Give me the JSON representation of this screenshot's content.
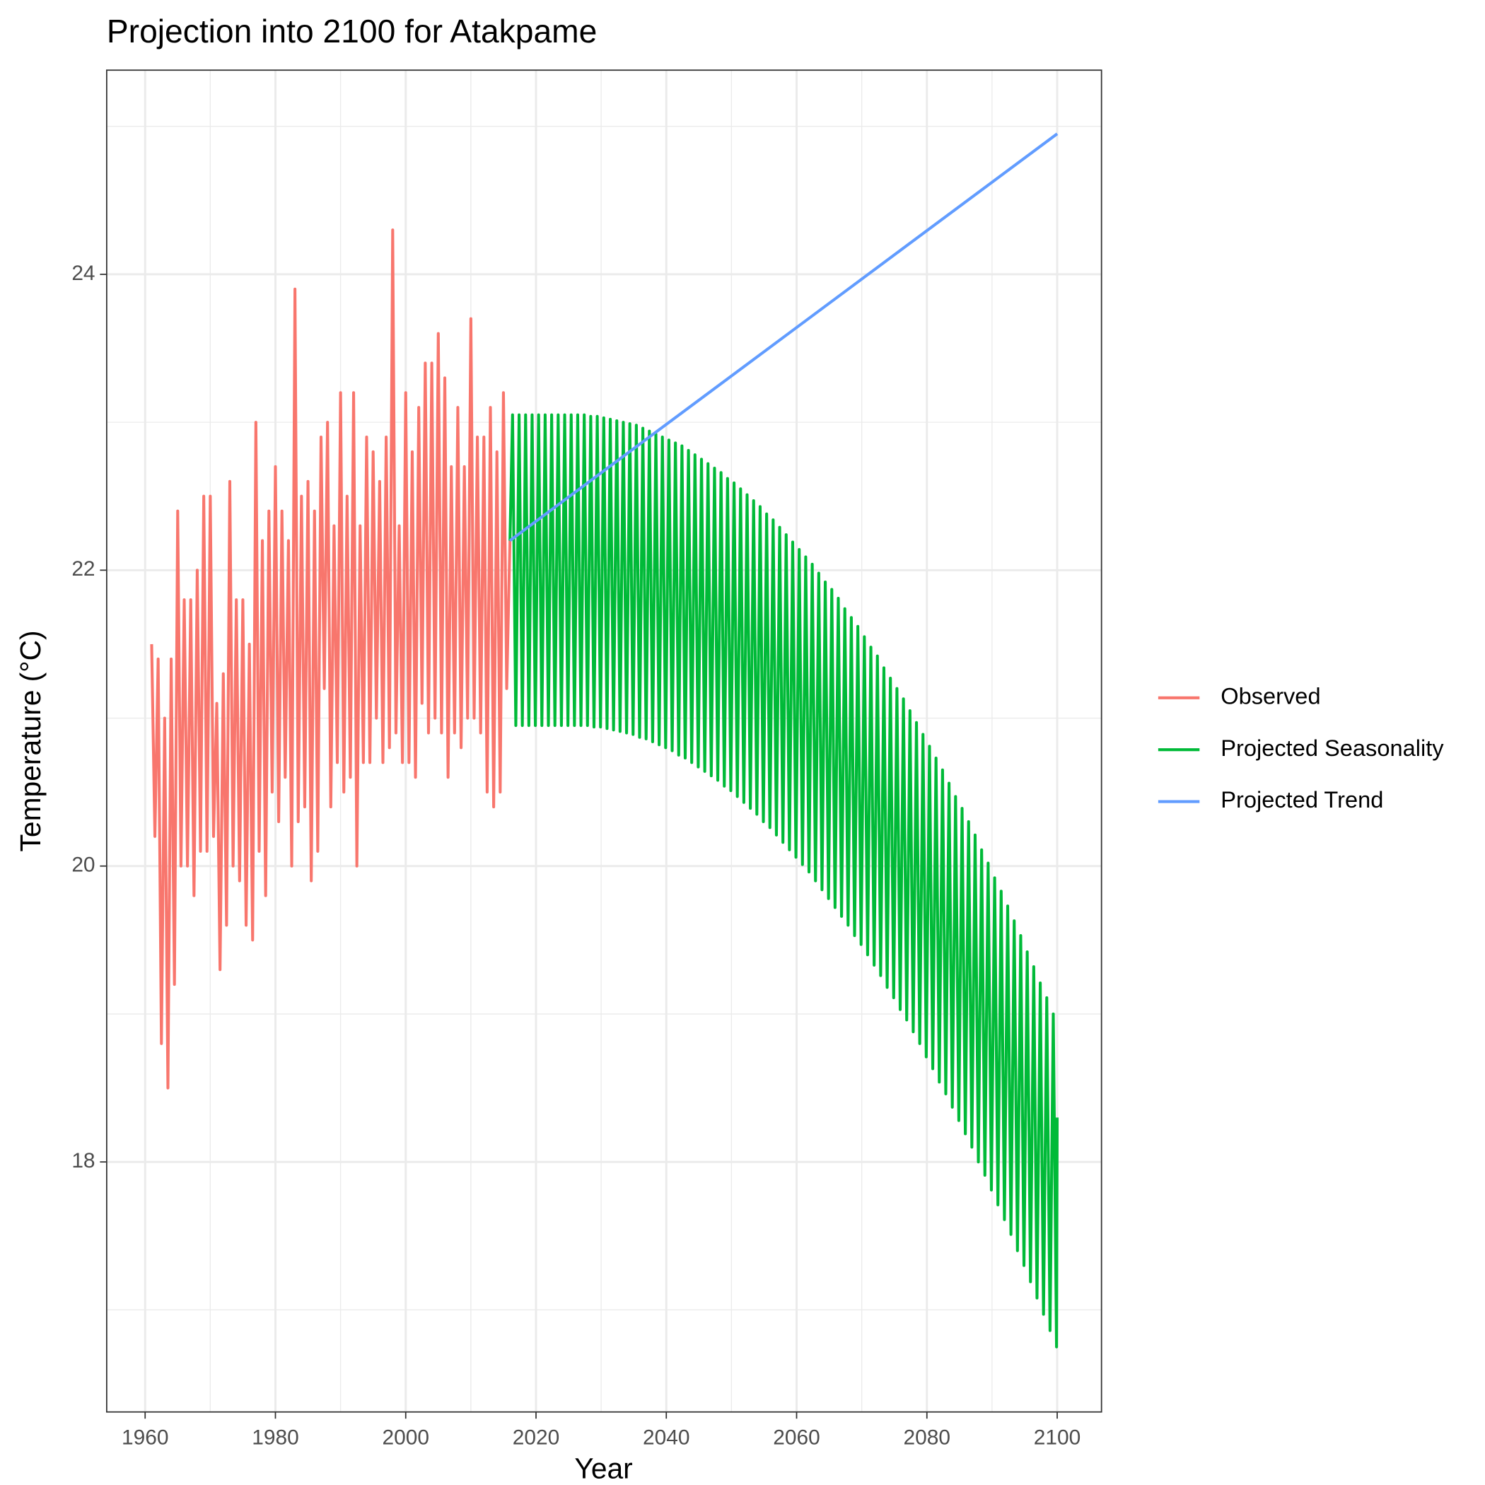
{
  "chart_data": {
    "type": "line",
    "title": "Projection into 2100 for Atakpame",
    "x_label": "Year",
    "y_label": "Temperature (°C)",
    "xlim": [
      1954.1,
      2106.8
    ],
    "ylim": [
      16.31,
      25.38
    ],
    "xticks": [
      1960,
      1980,
      2000,
      2020,
      2040,
      2060,
      2080,
      2100
    ],
    "yticks": [
      18,
      20,
      22,
      24
    ],
    "xminorticks": [
      1970,
      1990,
      2010,
      2030,
      2050,
      2070,
      2090
    ],
    "yminorticks": [
      17,
      19,
      21,
      23,
      25
    ],
    "grid": true,
    "legend": "right",
    "series": [
      {
        "name": "Observed",
        "color": "#F8766D",
        "x": [
          1961,
          1961.5,
          1962,
          1962.5,
          1963,
          1963.5,
          1964,
          1964.5,
          1965,
          1965.5,
          1966,
          1966.5,
          1967,
          1967.5,
          1968,
          1968.5,
          1969,
          1969.5,
          1970,
          1970.5,
          1971,
          1971.5,
          1972,
          1972.5,
          1973,
          1973.5,
          1974,
          1974.5,
          1975,
          1975.5,
          1976,
          1976.5,
          1977,
          1977.5,
          1978,
          1978.5,
          1979,
          1979.5,
          1980,
          1980.5,
          1981,
          1981.5,
          1982,
          1982.5,
          1983,
          1983.5,
          1984,
          1984.5,
          1985,
          1985.5,
          1986,
          1986.5,
          1987,
          1987.5,
          1988,
          1988.5,
          1989,
          1989.5,
          1990,
          1990.5,
          1991,
          1991.5,
          1992,
          1992.5,
          1993,
          1993.5,
          1994,
          1994.5,
          1995,
          1995.5,
          1996,
          1996.5,
          1997,
          1997.5,
          1998,
          1998.5,
          1999,
          1999.5,
          2000,
          2000.5,
          2001,
          2001.5,
          2002,
          2002.5,
          2003,
          2003.5,
          2004,
          2004.5,
          2005,
          2005.5,
          2006,
          2006.5,
          2007,
          2007.5,
          2008,
          2008.5,
          2009,
          2009.5,
          2010,
          2010.5,
          2011,
          2011.5,
          2012,
          2012.5,
          2013,
          2013.5,
          2014,
          2014.5,
          2015,
          2015.5,
          2016
        ],
        "values": [
          21.5,
          20.2,
          21.4,
          18.8,
          21.0,
          18.5,
          21.4,
          19.2,
          22.4,
          20.0,
          21.8,
          20.0,
          21.8,
          19.8,
          22.0,
          20.1,
          22.5,
          20.1,
          22.5,
          20.2,
          21.1,
          19.3,
          21.3,
          19.6,
          22.6,
          20.0,
          21.8,
          19.9,
          21.8,
          19.6,
          21.5,
          19.5,
          23.0,
          20.1,
          22.2,
          19.8,
          22.4,
          20.5,
          22.7,
          20.3,
          22.4,
          20.6,
          22.2,
          20.0,
          23.9,
          20.3,
          22.5,
          20.4,
          22.6,
          19.9,
          22.4,
          20.1,
          22.9,
          21.2,
          23.0,
          20.4,
          22.3,
          20.7,
          23.2,
          20.5,
          22.5,
          20.6,
          23.2,
          20.0,
          22.3,
          20.7,
          22.9,
          20.7,
          22.8,
          21.0,
          22.6,
          20.7,
          22.9,
          20.8,
          24.3,
          20.9,
          22.3,
          20.7,
          23.2,
          20.7,
          22.8,
          20.6,
          23.1,
          21.1,
          23.4,
          20.9,
          23.4,
          21.0,
          23.6,
          20.9,
          23.3,
          20.6,
          22.7,
          20.9,
          23.1,
          20.8,
          22.7,
          21.0,
          23.7,
          21.0,
          22.9,
          20.9,
          22.9,
          20.5,
          23.1,
          20.4,
          22.8,
          20.5,
          23.2,
          21.2,
          22.2
        ]
      },
      {
        "name": "Projected Seasonality",
        "color": "#00BA38",
        "x": [
          2016,
          2016.4,
          2016.9,
          2017.4,
          2017.9,
          2018.4,
          2018.9,
          2019.4,
          2019.9,
          2020.4,
          2020.9,
          2021.4,
          2021.9,
          2022.4,
          2022.9,
          2023.4,
          2023.9,
          2024.4,
          2024.9,
          2025.4,
          2025.9,
          2026.4,
          2026.9,
          2027.4,
          2027.9,
          2028.4,
          2028.9,
          2029.4,
          2029.9,
          2030.4,
          2030.9,
          2031.4,
          2031.9,
          2032.4,
          2032.9,
          2033.4,
          2033.9,
          2034.4,
          2034.9,
          2035.4,
          2035.9,
          2036.4,
          2036.9,
          2037.4,
          2037.9,
          2038.4,
          2038.9,
          2039.4,
          2039.9,
          2040.4,
          2040.9,
          2041.4,
          2041.9,
          2042.4,
          2042.9,
          2043.4,
          2043.9,
          2044.4,
          2044.9,
          2045.4,
          2045.9,
          2046.4,
          2046.9,
          2047.4,
          2047.9,
          2048.4,
          2048.9,
          2049.4,
          2049.9,
          2050.4,
          2050.9,
          2051.4,
          2051.9,
          2052.4,
          2052.9,
          2053.4,
          2053.9,
          2054.4,
          2054.9,
          2055.4,
          2055.9,
          2056.4,
          2056.9,
          2057.4,
          2057.9,
          2058.4,
          2058.9,
          2059.4,
          2059.9,
          2060.4,
          2060.9,
          2061.4,
          2061.9,
          2062.4,
          2062.9,
          2063.4,
          2063.9,
          2064.4,
          2064.9,
          2065.4,
          2065.9,
          2066.4,
          2066.9,
          2067.4,
          2067.9,
          2068.4,
          2068.9,
          2069.4,
          2069.9,
          2070.4,
          2070.9,
          2071.4,
          2071.9,
          2072.4,
          2072.9,
          2073.4,
          2073.9,
          2074.4,
          2074.9,
          2075.4,
          2075.9,
          2076.4,
          2076.9,
          2077.4,
          2077.9,
          2078.4,
          2078.9,
          2079.4,
          2079.9,
          2080.4,
          2080.9,
          2081.4,
          2081.9,
          2082.4,
          2082.9,
          2083.4,
          2083.9,
          2084.4,
          2084.9,
          2085.4,
          2085.9,
          2086.4,
          2086.9,
          2087.4,
          2087.9,
          2088.4,
          2088.9,
          2089.4,
          2089.9,
          2090.4,
          2090.9,
          2091.4,
          2091.9,
          2092.4,
          2092.9,
          2093.4,
          2093.9,
          2094.4,
          2094.9,
          2095.4,
          2095.9,
          2096.4,
          2096.9,
          2097.4,
          2097.9,
          2098.4,
          2098.9,
          2099.4,
          2099.9,
          2100
        ],
        "values": [
          22.2,
          23.05,
          20.95,
          23.05,
          20.95,
          23.05,
          20.95,
          23.05,
          20.95,
          23.05,
          20.95,
          23.05,
          20.95,
          23.05,
          20.95,
          23.05,
          20.95,
          23.05,
          20.95,
          23.05,
          20.95,
          23.05,
          20.95,
          23.05,
          20.95,
          23.04,
          20.94,
          23.04,
          20.94,
          23.03,
          20.93,
          23.02,
          20.92,
          23.01,
          20.91,
          23.0,
          20.9,
          22.99,
          20.89,
          22.98,
          20.87,
          22.96,
          20.86,
          22.94,
          20.84,
          22.92,
          20.82,
          22.9,
          20.8,
          22.88,
          20.78,
          22.86,
          20.75,
          22.84,
          20.73,
          22.81,
          20.7,
          22.78,
          20.67,
          22.75,
          20.64,
          22.72,
          20.61,
          22.69,
          20.58,
          22.66,
          20.54,
          22.62,
          20.51,
          22.59,
          20.47,
          22.55,
          20.43,
          22.51,
          20.39,
          22.47,
          20.35,
          22.43,
          20.3,
          22.38,
          20.26,
          22.34,
          20.21,
          22.29,
          20.16,
          22.24,
          20.11,
          22.19,
          20.06,
          22.14,
          20.01,
          22.09,
          19.96,
          22.04,
          19.9,
          21.98,
          19.84,
          21.92,
          19.78,
          21.87,
          19.72,
          21.81,
          19.66,
          21.74,
          19.6,
          21.68,
          19.53,
          21.62,
          19.47,
          21.55,
          19.4,
          21.48,
          19.33,
          21.42,
          19.26,
          21.34,
          19.18,
          21.27,
          19.11,
          21.2,
          19.03,
          21.13,
          18.96,
          21.05,
          18.88,
          20.97,
          18.8,
          20.89,
          18.71,
          20.81,
          18.63,
          20.73,
          18.54,
          20.65,
          18.46,
          20.56,
          18.37,
          20.47,
          18.28,
          20.39,
          18.19,
          20.3,
          18.1,
          20.21,
          18.0,
          20.11,
          17.91,
          20.02,
          17.81,
          19.92,
          17.71,
          19.83,
          17.61,
          19.73,
          17.51,
          19.63,
          17.4,
          19.53,
          17.3,
          19.42,
          17.19,
          19.32,
          17.08,
          19.21,
          16.97,
          19.11,
          16.86,
          19.0,
          16.75,
          18.3
        ]
      },
      {
        "name": "Projected Trend",
        "color": "#619CFF",
        "x": [
          2016,
          2100
        ],
        "values": [
          22.2,
          24.95
        ]
      }
    ]
  }
}
